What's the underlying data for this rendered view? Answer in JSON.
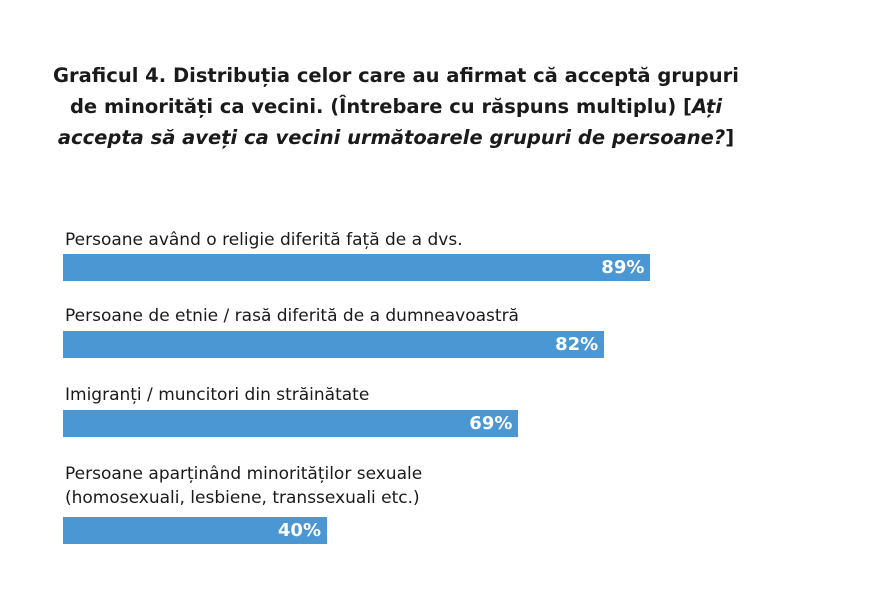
{
  "title": {
    "normal": "Graficul 4. Distribuția celor care au afirmat că acceptă grupuri de minorități ca vecini. (Întrebare cu răspuns multiplu) [",
    "italic": "Ați accepta să aveți ca vecini următoarele grupuri de persoane?",
    "end": "]"
  },
  "colors": {
    "bar": "#4a97d3",
    "value_text": "#ffffff"
  },
  "chart_data": {
    "type": "bar",
    "orientation": "horizontal",
    "title": "Graficul 4. Distribuția celor care au afirmat că acceptă grupuri de minorități ca vecini. (Întrebare cu răspuns multiplu) [Ați accepta să aveți ca vecini următoarele grupuri de persoane?]",
    "categories": [
      "Persoane având o religie diferită față de a dvs.",
      "Persoane de etnie / rasă diferită de a dumneavoastră",
      "Imigranți / muncitori din străinătate",
      "Persoane aparținând minorităților sexuale\n(homosexuali, lesbiene, transsexuali etc.)"
    ],
    "values": [
      89,
      82,
      69,
      40
    ],
    "value_labels": [
      "89%",
      "82%",
      "69%",
      "40%"
    ],
    "xlim": [
      0,
      100
    ],
    "grid": false,
    "legend": "none"
  }
}
